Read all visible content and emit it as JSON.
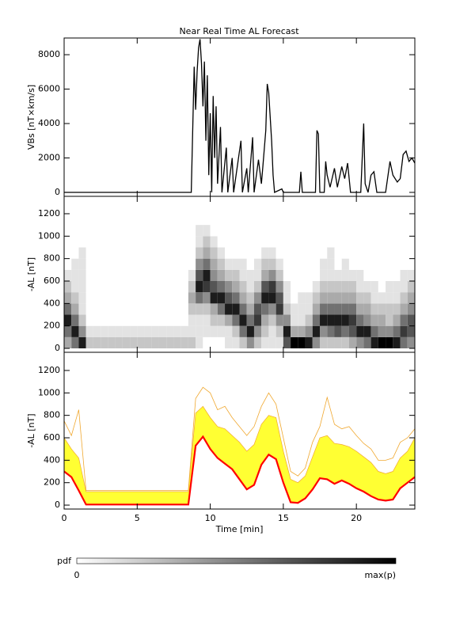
{
  "chart_data": [
    {
      "type": "line",
      "title": "Near Real Time AL Forecast",
      "ylabel": "VBs [nT×km/s]",
      "color": "#000000",
      "xlim": [
        0,
        24
      ],
      "xticks": [
        0,
        5,
        10,
        15,
        20
      ],
      "ylim": [
        -230,
        8970
      ],
      "yticks": [
        0,
        2000,
        4000,
        6000,
        8000
      ],
      "x": [
        0,
        8.7,
        8.9,
        9.0,
        9.1,
        9.2,
        9.3,
        9.4,
        9.5,
        9.6,
        9.7,
        9.8,
        9.9,
        10.0,
        10.1,
        10.2,
        10.3,
        10.4,
        10.5,
        10.7,
        10.8,
        11.1,
        11.2,
        11.5,
        11.6,
        12.1,
        12.2,
        12.5,
        12.6,
        12.9,
        13.0,
        13.3,
        13.5,
        13.6,
        13.8,
        13.9,
        14.0,
        14.2,
        14.3,
        14.4,
        14.9,
        15.0,
        16.1,
        16.2,
        16.3,
        17.2,
        17.3,
        17.4,
        17.5,
        17.8,
        17.9,
        18.0,
        18.2,
        18.5,
        18.7,
        19.0,
        19.2,
        19.4,
        19.6,
        20.3,
        20.5,
        20.6,
        20.8,
        21.0,
        21.2,
        21.4,
        22.0,
        22.3,
        22.5,
        22.8,
        23.0,
        23.2,
        23.4,
        23.6,
        23.8,
        24.0
      ],
      "values": [
        0,
        0,
        7300,
        4800,
        7000,
        8400,
        8900,
        7500,
        5000,
        7600,
        3000,
        6800,
        1000,
        4600,
        0,
        5600,
        2000,
        5000,
        500,
        3800,
        0,
        2600,
        0,
        2000,
        0,
        3000,
        0,
        1400,
        0,
        3200,
        0,
        1900,
        500,
        1500,
        3600,
        6300,
        5800,
        3000,
        1000,
        0,
        200,
        0,
        0,
        1200,
        0,
        0,
        3600,
        3400,
        0,
        0,
        1800,
        1000,
        300,
        1400,
        300,
        1500,
        800,
        1700,
        0,
        0,
        4000,
        500,
        0,
        1000,
        1200,
        0,
        0,
        1800,
        1000,
        600,
        800,
        2200,
        2400,
        1800,
        2000,
        1700
      ]
    },
    {
      "type": "heatmap",
      "ylabel": "-AL [nT]",
      "xlim": [
        0,
        24
      ],
      "xticks": [
        0,
        5,
        10,
        15,
        20
      ],
      "ylim": [
        -35,
        1355
      ],
      "yticks": [
        0,
        200,
        400,
        600,
        800,
        1000,
        1200
      ],
      "x_edges": [
        0,
        0.5,
        1,
        1.5,
        2,
        2.5,
        3,
        3.5,
        4,
        4.5,
        5,
        5.5,
        6,
        6.5,
        7,
        7.5,
        8,
        8.5,
        9,
        9.5,
        10,
        10.5,
        11,
        11.5,
        12,
        12.5,
        13,
        13.5,
        14,
        14.5,
        15,
        15.5,
        16,
        16.5,
        17,
        17.5,
        18,
        18.5,
        19,
        19.5,
        20,
        20.5,
        21,
        21.5,
        22,
        22.5,
        23,
        23.5,
        24
      ],
      "y_edges": [
        0,
        100,
        200,
        300,
        400,
        500,
        600,
        700,
        800,
        900,
        1000,
        1100
      ],
      "zlabel": "pdf",
      "zlim": [
        0,
        9
      ],
      "zticks": [
        0,
        {
          "value": 9,
          "label": "max(p)"
        }
      ],
      "z": [
        [
          3,
          5,
          8,
          5,
          3,
          2,
          1,
          0,
          0,
          0,
          0
        ],
        [
          5,
          8,
          5,
          3,
          2,
          1,
          1,
          1,
          0,
          0,
          0
        ],
        [
          8,
          4,
          2,
          1,
          1,
          1,
          1,
          1,
          1,
          0,
          0
        ],
        [
          2,
          1,
          0,
          0,
          0,
          0,
          0,
          0,
          0,
          0,
          0
        ],
        [
          2,
          1,
          0,
          0,
          0,
          0,
          0,
          0,
          0,
          0,
          0
        ],
        [
          2,
          1,
          0,
          0,
          0,
          0,
          0,
          0,
          0,
          0,
          0
        ],
        [
          2,
          1,
          0,
          0,
          0,
          0,
          0,
          0,
          0,
          0,
          0
        ],
        [
          2,
          1,
          0,
          0,
          0,
          0,
          0,
          0,
          0,
          0,
          0
        ],
        [
          2,
          1,
          0,
          0,
          0,
          0,
          0,
          0,
          0,
          0,
          0
        ],
        [
          2,
          1,
          0,
          0,
          0,
          0,
          0,
          0,
          0,
          0,
          0
        ],
        [
          2,
          1,
          0,
          0,
          0,
          0,
          0,
          0,
          0,
          0,
          0
        ],
        [
          2,
          1,
          0,
          0,
          0,
          0,
          0,
          0,
          0,
          0,
          0
        ],
        [
          2,
          1,
          0,
          0,
          0,
          0,
          0,
          0,
          0,
          0,
          0
        ],
        [
          2,
          1,
          0,
          0,
          0,
          0,
          0,
          0,
          0,
          0,
          0
        ],
        [
          2,
          1,
          0,
          0,
          0,
          0,
          0,
          0,
          0,
          0,
          0
        ],
        [
          2,
          1,
          0,
          0,
          0,
          0,
          0,
          0,
          0,
          0,
          0
        ],
        [
          2,
          1,
          0,
          0,
          0,
          0,
          0,
          0,
          0,
          0,
          0
        ],
        [
          2,
          1,
          1,
          2,
          3,
          2,
          1,
          0,
          0,
          0,
          0
        ],
        [
          1,
          1,
          1,
          2,
          5,
          8,
          6,
          4,
          2,
          1,
          1
        ],
        [
          0,
          1,
          1,
          2,
          4,
          7,
          8,
          5,
          3,
          2,
          1
        ],
        [
          0,
          1,
          2,
          3,
          8,
          6,
          4,
          3,
          2,
          1,
          0
        ],
        [
          0,
          1,
          2,
          5,
          8,
          5,
          3,
          2,
          1,
          0,
          0
        ],
        [
          1,
          1,
          3,
          8,
          6,
          4,
          2,
          1,
          0,
          0,
          0
        ],
        [
          1,
          2,
          5,
          8,
          5,
          3,
          2,
          1,
          0,
          0,
          0
        ],
        [
          2,
          5,
          8,
          5,
          3,
          2,
          1,
          1,
          0,
          0,
          0
        ],
        [
          4,
          8,
          5,
          3,
          2,
          1,
          1,
          0,
          0,
          0,
          0
        ],
        [
          2,
          4,
          7,
          6,
          4,
          2,
          1,
          1,
          0,
          0,
          0
        ],
        [
          1,
          2,
          3,
          5,
          8,
          6,
          3,
          2,
          1,
          0,
          0
        ],
        [
          1,
          1,
          2,
          4,
          8,
          7,
          4,
          2,
          1,
          0,
          0
        ],
        [
          1,
          2,
          4,
          7,
          6,
          4,
          2,
          1,
          0,
          0,
          0
        ],
        [
          6,
          8,
          4,
          2,
          1,
          1,
          0,
          0,
          0,
          0,
          0
        ],
        [
          9,
          3,
          1,
          1,
          0,
          0,
          0,
          0,
          0,
          0,
          0
        ],
        [
          9,
          3,
          1,
          1,
          1,
          0,
          0,
          0,
          0,
          0,
          0
        ],
        [
          8,
          4,
          2,
          1,
          1,
          0,
          0,
          0,
          0,
          0,
          0
        ],
        [
          4,
          8,
          5,
          3,
          2,
          1,
          0,
          0,
          0,
          0,
          0
        ],
        [
          2,
          4,
          8,
          5,
          3,
          2,
          1,
          1,
          0,
          0,
          0
        ],
        [
          2,
          5,
          8,
          5,
          3,
          2,
          1,
          1,
          1,
          0,
          0
        ],
        [
          2,
          6,
          8,
          5,
          3,
          2,
          1,
          0,
          0,
          0,
          0
        ],
        [
          2,
          5,
          8,
          5,
          3,
          2,
          1,
          1,
          0,
          0,
          0
        ],
        [
          3,
          6,
          7,
          5,
          3,
          2,
          1,
          0,
          0,
          0,
          0
        ],
        [
          4,
          8,
          5,
          3,
          2,
          1,
          1,
          0,
          0,
          0,
          0
        ],
        [
          5,
          8,
          4,
          3,
          2,
          1,
          0,
          0,
          0,
          0,
          0
        ],
        [
          8,
          5,
          3,
          2,
          1,
          1,
          0,
          0,
          0,
          0,
          0
        ],
        [
          9,
          4,
          3,
          2,
          1,
          0,
          0,
          0,
          0,
          0,
          0
        ],
        [
          9,
          4,
          2,
          2,
          1,
          1,
          0,
          0,
          0,
          0,
          0
        ],
        [
          8,
          5,
          3,
          2,
          1,
          1,
          0,
          0,
          0,
          0,
          0
        ],
        [
          5,
          7,
          5,
          3,
          2,
          1,
          1,
          0,
          0,
          0,
          0
        ],
        [
          4,
          6,
          6,
          4,
          3,
          2,
          1,
          0,
          0,
          0,
          0
        ]
      ]
    },
    {
      "type": "band",
      "ylabel": "-AL [nT]",
      "xlabel": "Time [min]",
      "xlim": [
        0,
        24
      ],
      "xticks": [
        0,
        5,
        10,
        15,
        20
      ],
      "ylim": [
        -35,
        1362
      ],
      "yticks": [
        0,
        200,
        400,
        600,
        800,
        1000,
        1200
      ],
      "x": [
        0,
        0.5,
        1,
        1.5,
        2,
        2.5,
        3,
        3.5,
        4,
        4.5,
        5,
        5.5,
        6,
        6.5,
        7,
        7.5,
        8,
        8.5,
        9,
        9.5,
        10,
        10.5,
        11,
        11.5,
        12,
        12.5,
        13,
        13.5,
        14,
        14.5,
        15,
        15.5,
        16,
        16.5,
        17,
        17.5,
        18,
        18.5,
        19,
        19.5,
        20,
        20.5,
        21,
        21.5,
        22,
        22.5,
        23,
        23.5,
        24
      ],
      "max": {
        "color": "#f0a830",
        "values": [
          750,
          620,
          850,
          130,
          130,
          130,
          130,
          130,
          130,
          130,
          130,
          130,
          130,
          130,
          130,
          130,
          130,
          130,
          950,
          1050,
          1000,
          850,
          880,
          780,
          700,
          620,
          700,
          880,
          1000,
          900,
          600,
          300,
          260,
          330,
          560,
          700,
          960,
          720,
          680,
          700,
          620,
          550,
          500,
          400,
          400,
          420,
          560,
          600,
          680
        ]
      },
      "upper": {
        "color": "#ffff33",
        "values": [
          600,
          500,
          420,
          120,
          120,
          120,
          120,
          120,
          120,
          120,
          120,
          120,
          120,
          120,
          120,
          120,
          120,
          120,
          820,
          880,
          780,
          700,
          680,
          620,
          560,
          480,
          540,
          720,
          800,
          780,
          480,
          230,
          200,
          260,
          430,
          600,
          620,
          550,
          540,
          520,
          480,
          430,
          380,
          300,
          280,
          300,
          420,
          480,
          600
        ]
      },
      "median": {
        "color": "#ff0000",
        "values": [
          300,
          250,
          130,
          5,
          5,
          5,
          5,
          5,
          5,
          5,
          5,
          5,
          5,
          5,
          5,
          5,
          5,
          5,
          530,
          610,
          500,
          420,
          370,
          320,
          230,
          140,
          180,
          360,
          450,
          410,
          200,
          25,
          20,
          60,
          140,
          240,
          230,
          190,
          220,
          190,
          150,
          120,
          80,
          50,
          40,
          50,
          150,
          200,
          250
        ]
      }
    }
  ]
}
